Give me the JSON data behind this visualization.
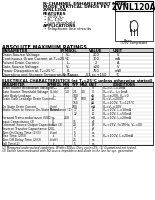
{
  "title_line1": "N-CHANNEL ENHANCEMENT MODE",
  "title_line2": "MODE VERTICAL DMOS FET",
  "title_line3": "ZVNL120A",
  "part_number": "ZVNL120A",
  "features_header": "FEATURES",
  "features": [
    "200V V₂ₜ",
    "Rₒₙ 17Ω",
    "Low threshold"
  ],
  "applications_header": "APPLICATIONS",
  "applications": [
    "Telephone line circuits"
  ],
  "abs_max_header": "ABSOLUTE MAXIMUM RATINGS",
  "abs_max_cols": [
    "PARAMETER",
    "SYMBOL",
    "VALUE",
    "UNIT"
  ],
  "abs_max_rows": [
    [
      "Drain Source Voltage",
      "V₂ₜ",
      "200",
      "V"
    ],
    [
      "Continuous Drain Current at Tₐ=25°C",
      "I₂",
      "100",
      "mA"
    ],
    [
      "Pulsed Drain Current",
      "I₂ₚ",
      "2",
      "A"
    ],
    [
      "Gate Source Voltage",
      "V₂ₜ",
      "±20",
      "V"
    ],
    [
      "Power Dissipation at Tₐ=25°C",
      "P₂",
      "750",
      "mW"
    ],
    [
      "Operating and Storage Temperature Range",
      "T₁, Tₜₐ₂",
      "-55 to +150",
      "°C"
    ]
  ],
  "elec_header": "ELECTRICAL CHARACTERISTICS (at Tₐ=25°C unless otherwise stated)",
  "elec_cols": [
    "PARAMETER",
    "SYMBOL",
    "MIN",
    "TYP",
    "MAX",
    "UNIT",
    "CONDITIONS"
  ],
  "elec_rows": [
    [
      "Drain Source Breakdown Voltage",
      "BV₂ₜₜ",
      "200",
      "",
      "",
      "V",
      "V₂ₜ=0, I₂=1mA"
    ],
    [
      "Gate Source Threshold Voltage",
      "V₂ₜ(th)",
      "1.0",
      "2.1",
      "3.0",
      "V",
      "V₂ₜ=V₂ₜ, I₂=1mA"
    ],
    [
      "Gate Body Leakage",
      "I₂ₜₜ",
      "",
      "100",
      "",
      "nA",
      "V₂ₜ=±20V, V₂ₜ=0"
    ],
    [
      "Drain Gate Leakage Drain Current",
      "I₂ₜₜ",
      "",
      "10",
      "100",
      "μA",
      "V₂ₜ=V₂ₜ=200V"
    ],
    [
      "",
      "",
      "",
      "150",
      "",
      "μA",
      "V₂ₜ=200V, Tₐ=125°C"
    ],
    [
      "On State Drain Current",
      "I₂(on)",
      "",
      "700",
      "",
      "mA",
      "V₂ₜ=V₂ₜ=10V"
    ],
    [
      "Static Drain to Source On-State Resistance (1)",
      "R₂ₜ(on)",
      "",
      "17",
      "",
      "Ω",
      "V₂ₜ=10V, I₂=10mA"
    ],
    [
      "",
      "",
      "",
      "22",
      "",
      "Ω",
      "V₂ₜ=10V, I₂=50mA"
    ],
    [
      "Forward Transconductance (VSD)",
      "g₂ₜ",
      "200",
      "",
      "",
      "mS",
      "V₂ₜ=10V, I₂=20mA"
    ],
    [
      "Input Capacitance (2)",
      "Cᴵₙ",
      "",
      "35",
      "",
      "pF",
      ""
    ],
    [
      "Common Source Output Capacitance (2)",
      "Cᴵₜₜ",
      "",
      "20",
      "",
      "pF",
      "V₂ₜ=25V, f=1MHz, V₂ₜ=0V"
    ],
    [
      "Reverse Transfer Capacitance (2)",
      "Cᴵₜₜ",
      "",
      "7",
      "",
      "pF",
      ""
    ],
    [
      "Turn On Delay Time (2)(3)",
      "t₂(on)",
      "",
      "5",
      "",
      "ns",
      ""
    ],
    [
      "Rise Time (2)(3)",
      "tᵣ",
      "",
      "5",
      "",
      "ns",
      "V₂ₜ=100V, I₂=20mA"
    ],
    [
      "Turn Off Delay Time (2)(3)",
      "t₂(off)",
      "",
      "25",
      "",
      "ns",
      ""
    ],
    [
      "Fall Time(2)",
      "t₂",
      "",
      "5",
      "",
      "ns",
      ""
    ]
  ],
  "note1": "(1) Measured under pulsed conditions. Width=300μs, Duty cycle=2%. (2) Guaranteed not tested.",
  "note2": "(3) Switch times measured with 5Ω source impedance and diode in the line for syn. generation",
  "bg_color": "#ffffff",
  "text_color": "#000000",
  "header_bg": "#cccccc"
}
